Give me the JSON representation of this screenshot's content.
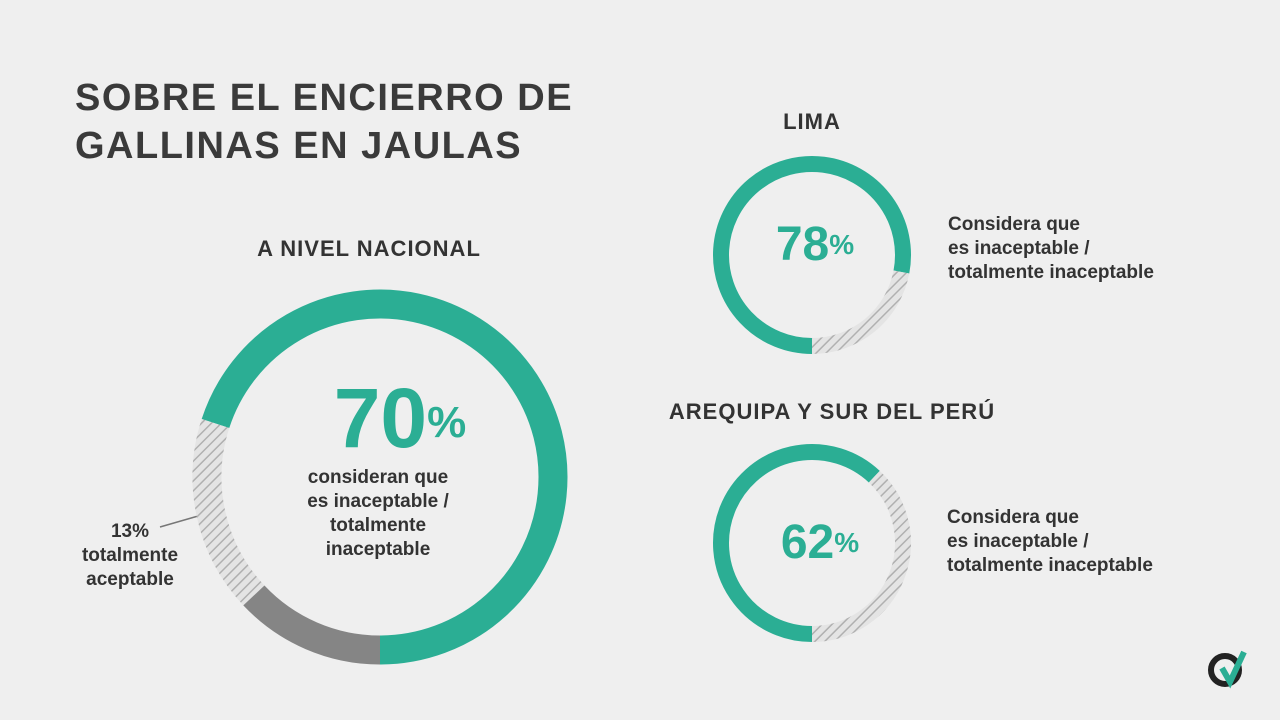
{
  "title": "SOBRE EL ENCIERRO DE\nGALLINAS EN JAULAS",
  "chart_data": [
    {
      "type": "donut",
      "title": "A NIVEL NACIONAL",
      "categories": [
        "consideran que\nes inaceptable /\ntotalmente\ninaceptable",
        null,
        "totalmente\naceptable"
      ],
      "values": [
        70,
        17,
        13
      ],
      "value_labels": [
        "70%",
        null,
        "13%"
      ],
      "colors": [
        "#2bae94",
        "hatch",
        "#858585"
      ]
    },
    {
      "type": "donut",
      "title": "LIMA",
      "categories": [
        "Considera que\nes inaceptable /\ntotalmente inaceptable",
        null
      ],
      "values": [
        78,
        22
      ],
      "value_labels": [
        "78%",
        null
      ],
      "colors": [
        "#2bae94",
        "hatch"
      ]
    },
    {
      "type": "donut",
      "title": "AREQUIPA Y SUR DEL PERÚ",
      "categories": [
        "Considera que\nes inaceptable /\ntotalmente inaceptable",
        null
      ],
      "values": [
        62,
        38
      ],
      "value_labels": [
        "62%",
        null
      ],
      "colors": [
        "#2bae94",
        "hatch"
      ]
    }
  ]
}
